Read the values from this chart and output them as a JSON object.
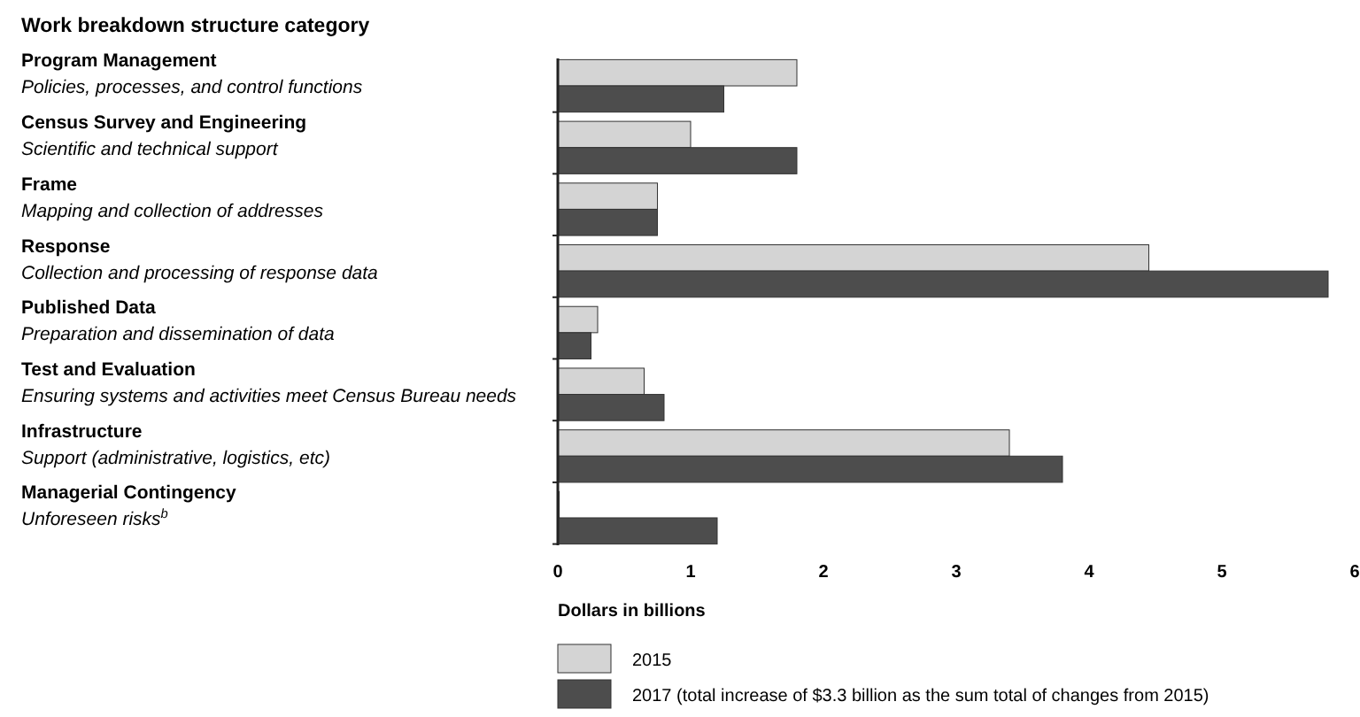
{
  "chart_data": {
    "type": "bar",
    "orientation": "horizontal",
    "ylabel": "Work breakdown structure category",
    "xlabel": "Dollars in billions",
    "categories": [
      "Program Management\nPolicies, processes, and control functions",
      "Census Survey and Engineering\nScientific and technical support",
      "Frame\nMapping and collection of addresses",
      "Response\nCollection and processing of response data",
      "Published Data\nPreparation and dissemination of data",
      "Test and Evaluation\nEnsuring systems and activities meet Census Bureau needs",
      "Infrastructure\nSupport (administrative, logistics, etc)",
      "Managerial Contingency\nUnforeseen risks$^{b}$"
    ],
    "series": [
      {
        "name": "2015",
        "color": "#d4d4d4",
        "values": [
          1.8,
          1.0,
          0.75,
          4.45,
          0.3,
          0.65,
          3.4,
          0
        ]
      },
      {
        "name": "2017 (total increase of $3.3 billion as the sum total of changes from 2015)",
        "color": "#4d4d4d",
        "values": [
          1.25,
          1.8,
          0.75,
          5.8,
          0.25,
          0.8,
          3.8,
          1.2
        ]
      }
    ],
    "xlim": [
      0,
      6
    ],
    "xticks": [
      0,
      1,
      2,
      3,
      4,
      5,
      6
    ],
    "grid": false,
    "legend": "bottom"
  }
}
